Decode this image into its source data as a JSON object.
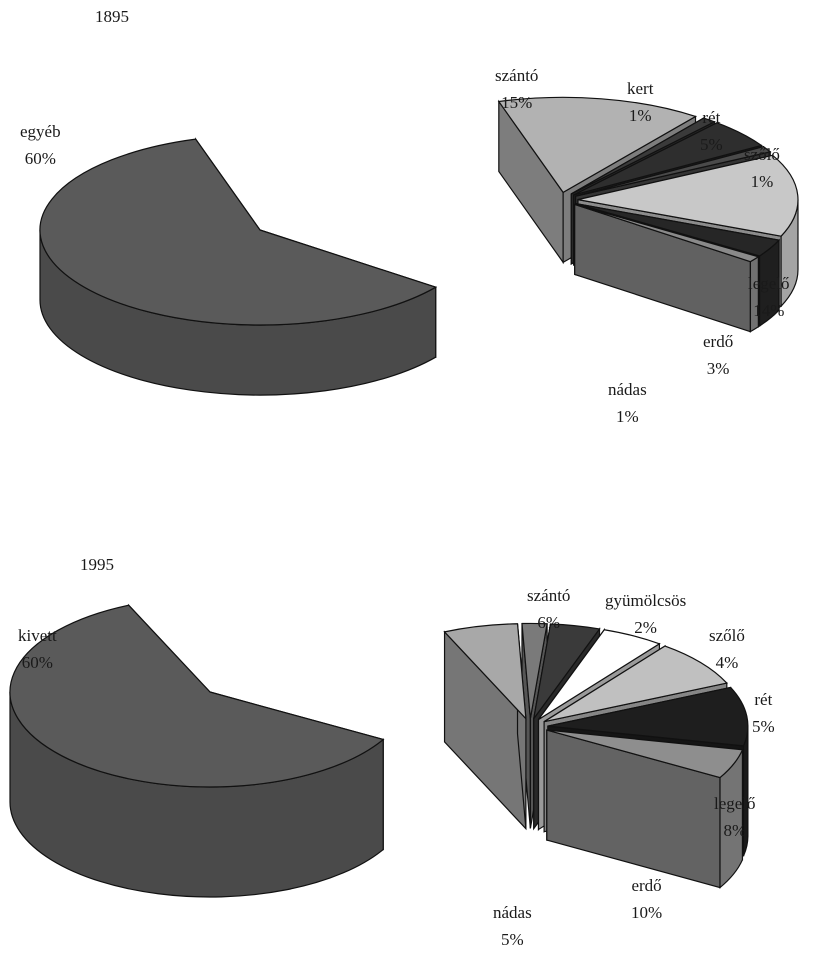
{
  "chart_data": [
    {
      "type": "pie",
      "title": "1895",
      "slices": [
        {
          "label": "egyéb",
          "value": 60,
          "display": "60%",
          "color": "#5a5a5a"
        },
        {
          "label": "szántó",
          "value": 15,
          "display": "15%",
          "color": "#b2b2b2"
        },
        {
          "label": "kert",
          "value": 1,
          "display": "1%",
          "color": "#3a3a3a"
        },
        {
          "label": "rét",
          "value": 5,
          "display": "5%",
          "color": "#2e2e2e"
        },
        {
          "label": "szőlő",
          "value": 1,
          "display": "1%",
          "color": "#4a4a4a"
        },
        {
          "label": "legelő",
          "value": 14,
          "display": "14%",
          "color": "#c8c8c8"
        },
        {
          "label": "erdő",
          "value": 3,
          "display": "3%",
          "color": "#262626"
        },
        {
          "label": "nádas",
          "value": 1,
          "display": "1%",
          "color": "#8a8a8a"
        }
      ]
    },
    {
      "type": "pie",
      "title": "1995",
      "slices": [
        {
          "label": "kivett",
          "value": 60,
          "display": "60%",
          "color": "#5a5a5a"
        },
        {
          "label": "szántó",
          "value": 6,
          "display": "6%",
          "color": "#a8a8a8"
        },
        {
          "label": "gyümölcsös",
          "value": 2,
          "display": "2%",
          "color": "#7a7a7a"
        },
        {
          "label": "szőlő",
          "value": 4,
          "display": "4%",
          "color": "#3a3a3a"
        },
        {
          "label": "rét",
          "value": 5,
          "display": "5%",
          "color": "#ffffff"
        },
        {
          "label": "legelő",
          "value": 8,
          "display": "8%",
          "color": "#c0c0c0"
        },
        {
          "label": "erdő",
          "value": 10,
          "display": "10%",
          "color": "#1e1e1e"
        },
        {
          "label": "nádas",
          "value": 5,
          "display": "5%",
          "color": "#8e8e8e"
        }
      ]
    }
  ]
}
